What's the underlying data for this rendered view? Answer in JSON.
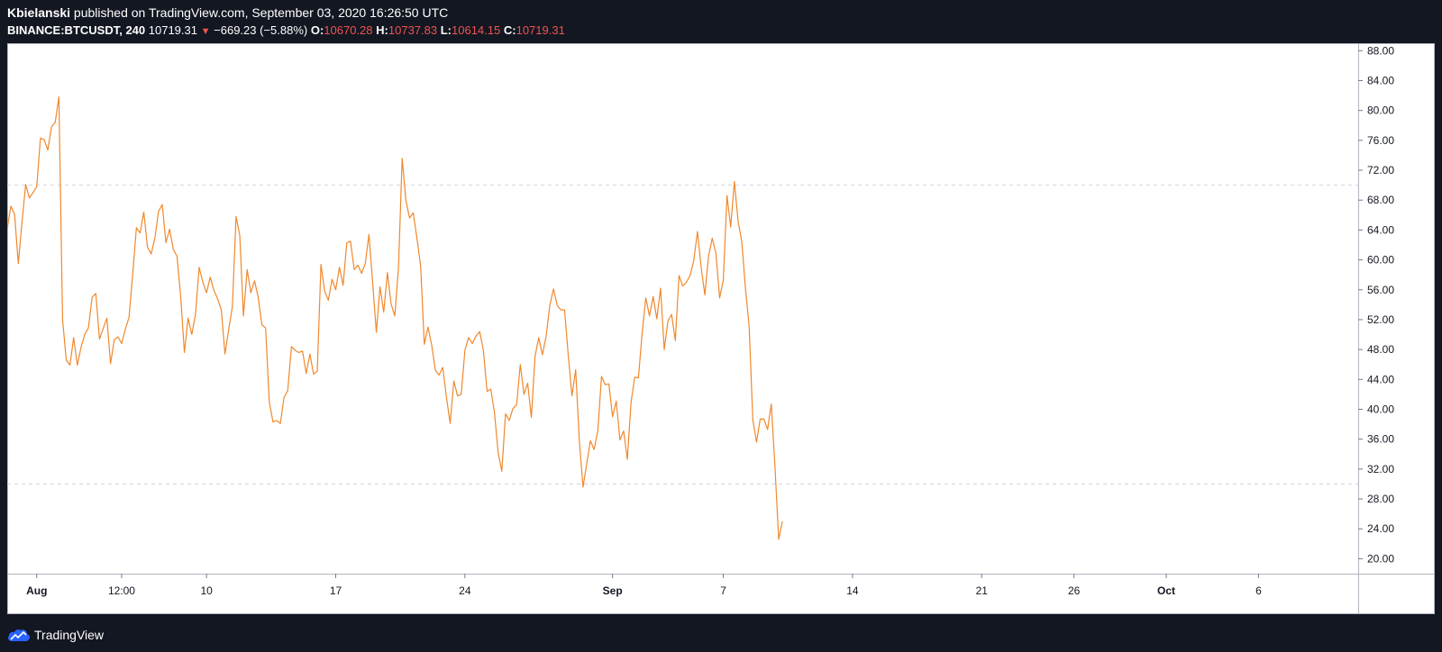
{
  "header": {
    "author": "Kbielanski",
    "published_text": "published on TradingView.com, September 03, 2020 16:26:50 UTC",
    "symbol": "BINANCE:BTCUSDT, 240",
    "last": "10719.31",
    "change": "−669.23 (−5.88%)",
    "open_label": "O:",
    "open": "10670.28",
    "high_label": "H:",
    "high": "10737.83",
    "low_label": "L:",
    "low": "10614.15",
    "close_label": "C:",
    "close": "10719.31"
  },
  "footer": {
    "brand": "TradingView",
    "logo_icon": "tradingview-cloud-icon"
  },
  "colors": {
    "line": "#f0882c",
    "background": "#131722",
    "panel": "#ffffff",
    "down": "#ef5350",
    "level": "#d1d4dc"
  },
  "chart_data": {
    "type": "line",
    "title": "",
    "xlabel": "",
    "ylabel": "",
    "ylim": [
      18,
      89
    ],
    "xlim": [
      0,
      366
    ],
    "y_ticks": [
      20,
      24,
      28,
      32,
      36,
      40,
      44,
      48,
      52,
      56,
      60,
      64,
      68,
      72,
      76,
      80,
      84,
      88
    ],
    "y_tick_labels": [
      "20.00",
      "24.00",
      "28.00",
      "32.00",
      "36.00",
      "40.00",
      "44.00",
      "48.00",
      "52.00",
      "56.00",
      "60.00",
      "64.00",
      "68.00",
      "72.00",
      "76.00",
      "80.00",
      "84.00",
      "88.00"
    ],
    "x_ticks": [
      {
        "x": 8,
        "label": "Aug",
        "bold": true
      },
      {
        "x": 31,
        "label": "12:00",
        "bold": false
      },
      {
        "x": 54,
        "label": "10",
        "bold": false
      },
      {
        "x": 89,
        "label": "17",
        "bold": false
      },
      {
        "x": 124,
        "label": "24",
        "bold": false
      },
      {
        "x": 164,
        "label": "Sep",
        "bold": true
      },
      {
        "x": 194,
        "label": "7",
        "bold": false
      },
      {
        "x": 229,
        "label": "14",
        "bold": false
      },
      {
        "x": 264,
        "label": "21",
        "bold": false
      },
      {
        "x": 289,
        "label": "26",
        "bold": false
      },
      {
        "x": 314,
        "label": "Oct",
        "bold": true
      },
      {
        "x": 339,
        "label": "6",
        "bold": false
      }
    ],
    "levels": [
      70,
      30
    ],
    "grid": false,
    "series": [
      {
        "values": [
          64.2,
          67.2,
          66.1,
          59.5,
          65.0,
          70.1,
          68.3,
          69.0,
          69.8,
          76.3,
          76.1,
          74.7,
          77.8,
          78.4,
          81.8,
          52.0,
          46.6,
          45.9,
          49.6,
          45.9,
          48.3,
          50.0,
          50.9,
          55.0,
          55.5,
          49.4,
          50.8,
          52.2,
          46.1,
          49.3,
          49.7,
          48.8,
          50.7,
          52.3,
          58.1,
          64.3,
          63.6,
          66.4,
          61.7,
          60.8,
          62.9,
          66.5,
          67.4,
          62.3,
          64.1,
          61.4,
          60.5,
          55.1,
          47.6,
          52.2,
          50.0,
          52.7,
          59.0,
          57.0,
          55.6,
          57.7,
          55.9,
          54.8,
          53.3,
          47.4,
          50.7,
          53.7,
          65.8,
          63.3,
          52.5,
          58.7,
          55.6,
          57.2,
          55.0,
          51.3,
          50.9,
          41.0,
          38.3,
          38.5,
          38.1,
          41.6,
          42.5,
          48.4,
          47.9,
          47.6,
          47.8,
          44.8,
          47.4,
          44.7,
          45.1,
          59.4,
          55.8,
          54.6,
          57.4,
          56.0,
          59.0,
          56.6,
          62.3,
          62.5,
          58.7,
          59.3,
          58.2,
          59.5,
          63.4,
          57.0,
          50.3,
          56.4,
          53.0,
          58.3,
          54.1,
          52.5,
          58.9,
          73.6,
          68.0,
          65.6,
          66.3,
          62.9,
          59.2,
          48.7,
          51.0,
          48.6,
          45.2,
          44.6,
          45.6,
          41.6,
          38.1,
          43.8,
          41.8,
          42.0,
          47.9,
          49.6,
          48.8,
          49.8,
          50.4,
          47.9,
          42.4,
          42.7,
          39.6,
          34.2,
          31.7,
          39.4,
          38.5,
          40.1,
          40.6,
          46.0,
          42.0,
          43.5,
          38.9,
          47.1,
          49.6,
          47.3,
          49.8,
          53.9,
          56.1,
          53.9,
          53.3,
          53.3,
          47.2,
          41.8,
          45.3,
          35.8,
          29.6,
          32.7,
          35.8,
          34.6,
          37.1,
          44.4,
          43.3,
          43.4,
          39.0,
          41.1,
          35.9,
          37.1,
          33.3,
          40.9,
          44.3,
          44.2,
          50.1,
          54.9,
          52.5,
          55.1,
          52.1,
          56.2,
          48.0,
          51.8,
          52.7,
          49.2,
          57.9,
          56.5,
          57.0,
          57.9,
          59.9,
          63.8,
          59.0,
          55.3,
          60.5,
          62.9,
          60.9,
          54.9,
          57.3,
          68.6,
          64.4,
          70.5,
          65.2,
          62.5,
          56.2,
          51.1,
          38.6,
          35.6,
          38.7,
          38.7,
          37.3,
          40.7,
          32.3,
          22.6,
          25.0
        ]
      }
    ]
  }
}
